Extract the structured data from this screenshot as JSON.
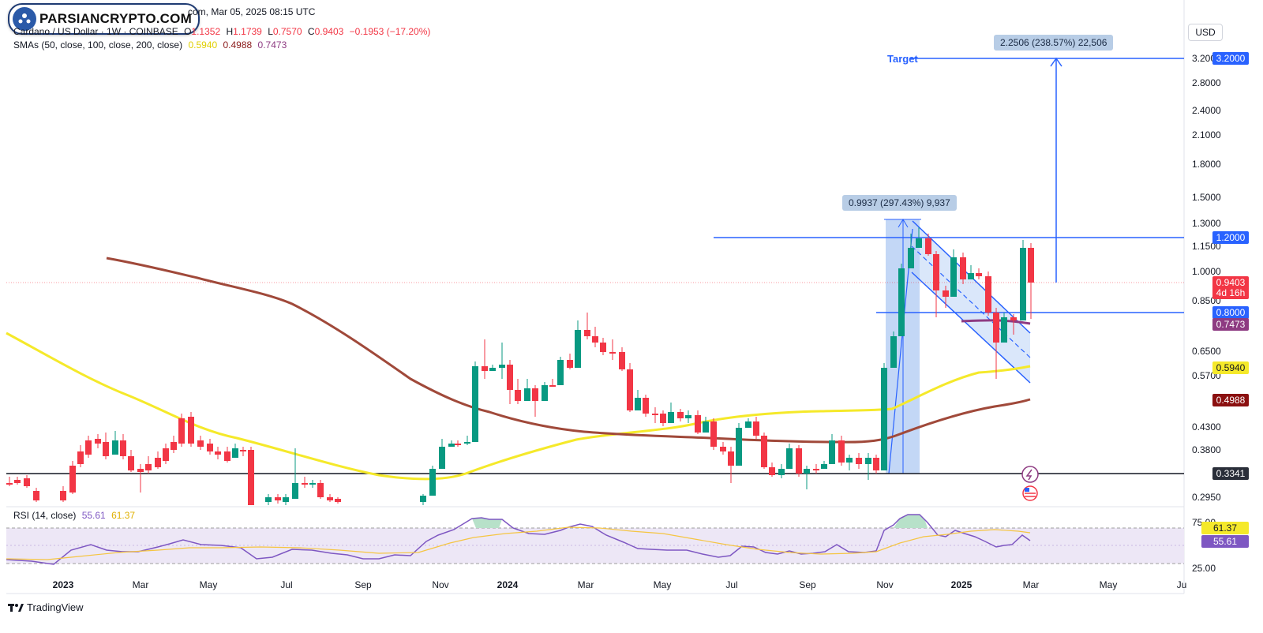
{
  "header": {
    "timestamp": "com, Mar 05, 2025 08:15 UTC",
    "symbol": "Cardano / US Dollar · 1W · COINBASE",
    "ohlc": {
      "open_label": "O",
      "open": "1.1352",
      "high_label": "H",
      "high": "1.1739",
      "low_label": "L",
      "low": "0.7570",
      "close_label": "C",
      "close": "0.9403",
      "change": "−0.1953 (−17.20%)"
    },
    "sma_label": "SMAs (50, close, 100, close, 200, close)",
    "sma_values": [
      "0.5940",
      "0.4988",
      "0.7473"
    ]
  },
  "logo_text": "PARSIANCRYPTO.COM",
  "currency_button": "USD",
  "price_axis": [
    "3.2000",
    "2.8000",
    "2.4000",
    "2.1000",
    "1.8000",
    "1.5000",
    "1.3000",
    "1.1500",
    "1.0000",
    "0.8500",
    "0.6500",
    "0.5700",
    "0.4300",
    "0.3800",
    "0.2950"
  ],
  "price_tags": [
    {
      "label": "3.2000",
      "kind": "line-blue"
    },
    {
      "label": "1.2000",
      "kind": "line-blue"
    },
    {
      "label": "0.9403",
      "kind": "last-price"
    },
    {
      "label": "4d 16h",
      "kind": "countdown"
    },
    {
      "label": "0.8000",
      "kind": "line-blue"
    },
    {
      "label": "0.7473",
      "kind": "sma-200"
    },
    {
      "label": "0.5940",
      "kind": "sma-50"
    },
    {
      "label": "0.4988",
      "kind": "sma-100"
    },
    {
      "label": "0.3341",
      "kind": "line-black"
    }
  ],
  "time_axis": [
    "2023",
    "Mar",
    "May",
    "Jul",
    "Sep",
    "Nov",
    "2024",
    "Mar",
    "May",
    "Jul",
    "Sep",
    "Nov",
    "2025",
    "Mar",
    "May",
    "Ju"
  ],
  "annotations": {
    "target_label": "Target",
    "measure_top": "2.2506 (238.57%) 22,506",
    "measure_mid": "0.9937 (297.43%) 9,937"
  },
  "rsi": {
    "label": "RSI (14, close)",
    "value": "55.61",
    "ma": "61.37",
    "axis": [
      "75.00",
      "25.00"
    ]
  },
  "footer_brand": "TradingView",
  "colors": {
    "up": "#089981",
    "down": "#f23645",
    "sma50": "#f5e92a",
    "sma100": "#a0493a",
    "sma200": "#8e3b82",
    "accent": "#2962ff"
  }
}
